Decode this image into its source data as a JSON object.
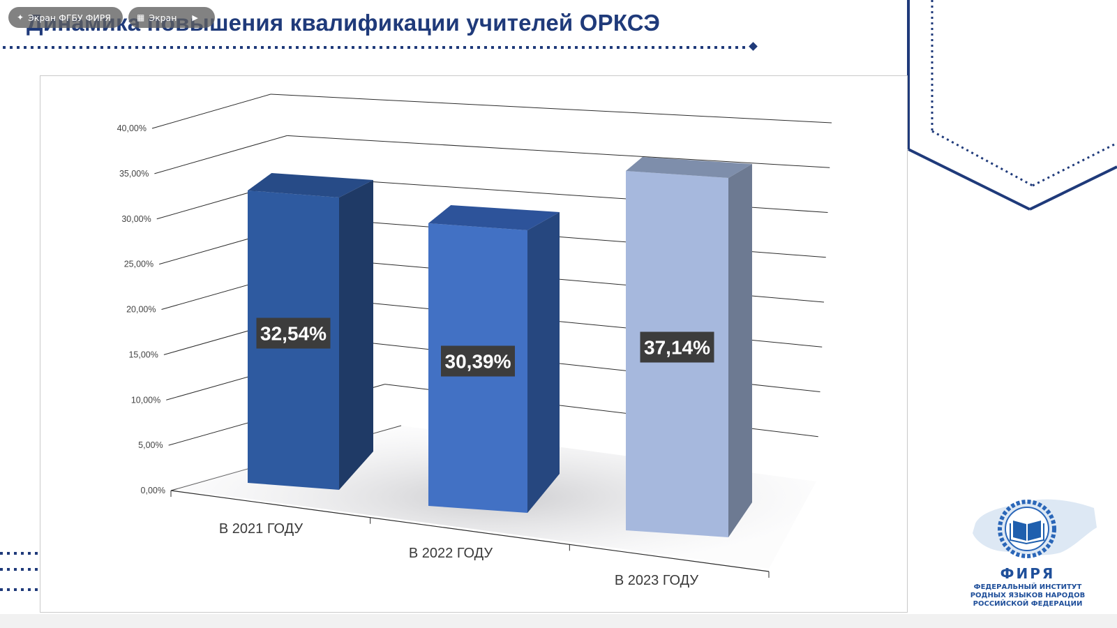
{
  "slide": {
    "title": "Динамика повышения квалификации учителей ОРКСЭ"
  },
  "overlay": {
    "chip_1_label": "Экран ФГБУ ФИРЯ",
    "chip_1_icon": "pin-icon",
    "chip_2_label": "Экран",
    "chip_2_icon": "screen-icon",
    "chip_2_extra_icon": "camera-icon"
  },
  "logo": {
    "name": "ФИРЯ",
    "subtitle_lines": [
      "ФЕДЕРАЛЬНЫЙ ИНСТИТУТ",
      "РОДНЫХ ЯЗЫКОВ НАРОДОВ",
      "РОССИЙСКОЙ ФЕДЕРАЦИИ"
    ]
  },
  "colors": {
    "title": "#1f3a7a",
    "accent_navy": "#1f3a7a",
    "bar_2021": "#2e5aa0",
    "bar_2022": "#4271c4",
    "bar_2023": "#a6b8dd",
    "data_label_bg": "#3c3c3c"
  },
  "chart_data": {
    "type": "bar",
    "style": "3d-column",
    "title": "",
    "xlabel": "",
    "ylabel": "",
    "categories": [
      "В 2021 ГОДУ",
      "В 2022 ГОДУ",
      "В 2023 ГОДУ"
    ],
    "values": [
      32.54,
      30.39,
      37.14
    ],
    "data_labels": [
      "32,54%",
      "30,39%",
      "37,14%"
    ],
    "ylim": [
      0,
      40
    ],
    "yticks": [
      0,
      5,
      10,
      15,
      20,
      25,
      30,
      35,
      40
    ],
    "ytick_labels": [
      "0,00%",
      "5,00%",
      "10,00%",
      "15,00%",
      "20,00%",
      "25,00%",
      "30,00%",
      "35,00%",
      "40,00%"
    ],
    "grid": true,
    "legend": "none"
  }
}
